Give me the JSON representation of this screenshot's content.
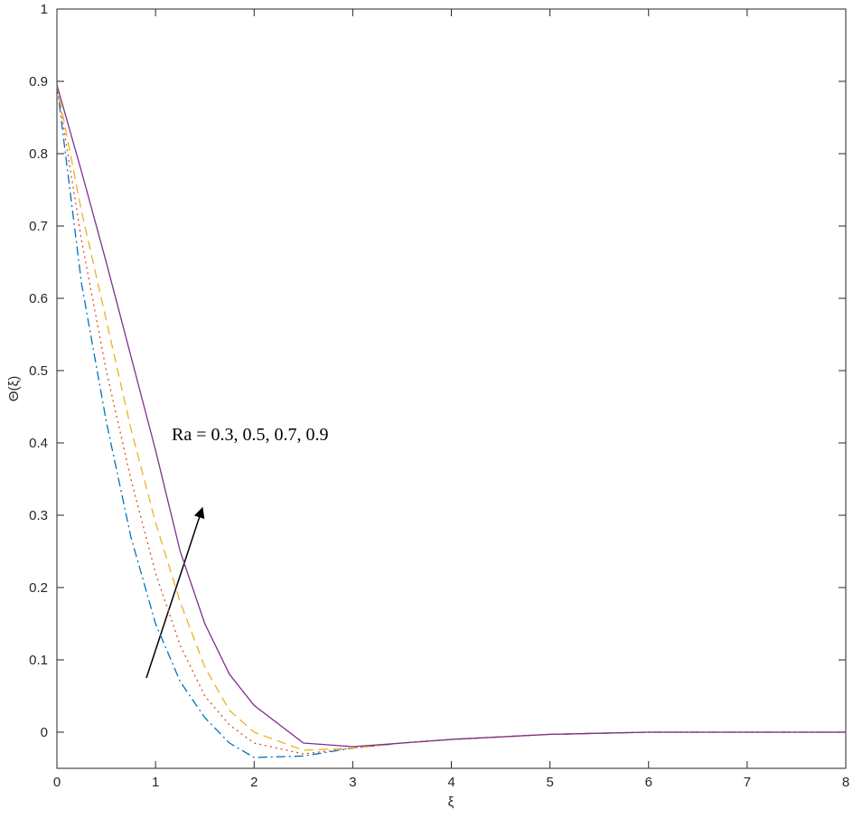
{
  "chart_data": {
    "type": "line",
    "x_label": "ξ",
    "y_label": "Θ(ξ)",
    "annotation": "Ra = 0.3, 0.5, 0.7, 0.9",
    "x": [
      0,
      0.25,
      0.5,
      0.75,
      1,
      1.25,
      1.5,
      1.75,
      2,
      2.5,
      3,
      3.5,
      4,
      5,
      6,
      7,
      8
    ],
    "series": [
      {
        "color": "#0072bd",
        "dash": "dashdot",
        "values": [
          0.895,
          0.62,
          0.43,
          0.27,
          0.15,
          0.07,
          0.02,
          -0.015,
          -0.035,
          -0.033,
          -0.022,
          -0.015,
          -0.01,
          -0.003,
          0,
          0,
          0
        ]
      },
      {
        "color": "#d95319",
        "dash": "dotted",
        "values": [
          0.895,
          0.68,
          0.5,
          0.35,
          0.22,
          0.12,
          0.05,
          0.01,
          -0.015,
          -0.03,
          -0.022,
          -0.015,
          -0.01,
          -0.003,
          0,
          0,
          0
        ]
      },
      {
        "color": "#edb120",
        "dash": "dashed",
        "values": [
          0.895,
          0.72,
          0.57,
          0.42,
          0.29,
          0.18,
          0.09,
          0.03,
          0.0,
          -0.025,
          -0.022,
          -0.015,
          -0.01,
          -0.003,
          0,
          0,
          0
        ]
      },
      {
        "color": "#7e2f8e",
        "dash": "solid",
        "values": [
          0.895,
          0.775,
          0.65,
          0.52,
          0.39,
          0.25,
          0.15,
          0.08,
          0.037,
          -0.015,
          -0.02,
          -0.015,
          -0.01,
          -0.003,
          0,
          0,
          0
        ]
      }
    ],
    "xlim": [
      0,
      8
    ],
    "xticks": [
      0,
      1,
      2,
      3,
      4,
      5,
      6,
      7,
      8
    ],
    "ylim": [
      -0.05,
      1
    ],
    "yticks": [
      0,
      0.1,
      0.2,
      0.3,
      0.4,
      0.5,
      0.6,
      0.7,
      0.8,
      0.9,
      1
    ],
    "grid": false
  }
}
